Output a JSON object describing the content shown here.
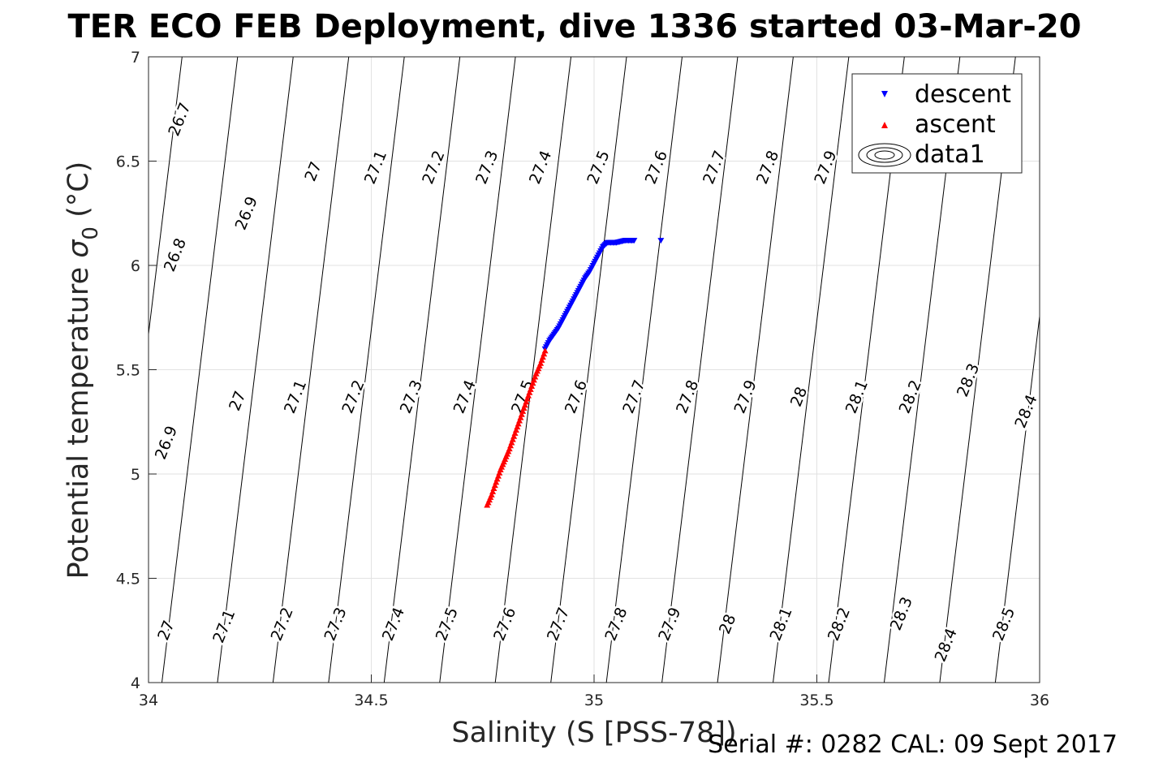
{
  "chart_data": {
    "type": "scatter",
    "title": "TER ECO FEB Deployment, dive 1336 started 03-Mar-20",
    "xlabel": "Salinity (S [PSS-78])",
    "ylabel_main": "Potential temperature ",
    "ylabel_sigma": "σ",
    "ylabel_sub": "0",
    "ylabel_unit": " (°C)",
    "xlim": [
      34,
      36
    ],
    "ylim": [
      4,
      7
    ],
    "grid": true,
    "x_ticks": [
      34,
      34.5,
      35,
      35.5,
      36
    ],
    "x_tick_labels": [
      "34",
      "34.5",
      "35",
      "35.5",
      "36"
    ],
    "y_ticks": [
      4,
      4.5,
      5,
      5.5,
      6,
      6.5,
      7
    ],
    "y_tick_labels": [
      "4",
      "4.5",
      "5",
      "5.5",
      "6",
      "6.5",
      "7"
    ],
    "legend_position": "top-right",
    "legend": [
      {
        "label": "descent",
        "marker": "triangle-down",
        "color": "#0000ff"
      },
      {
        "label": "ascent",
        "marker": "triangle-up",
        "color": "#ff0000"
      },
      {
        "label": "data1",
        "marker": "contour",
        "color": "#000000"
      }
    ],
    "series": [
      {
        "name": "descent",
        "color": "#0000ff",
        "marker": "triangle-down",
        "points": [
          [
            34.89,
            5.6
          ],
          [
            34.9,
            5.64
          ],
          [
            34.91,
            5.67
          ],
          [
            34.92,
            5.7
          ],
          [
            34.93,
            5.74
          ],
          [
            34.94,
            5.78
          ],
          [
            34.95,
            5.82
          ],
          [
            34.96,
            5.86
          ],
          [
            34.97,
            5.9
          ],
          [
            34.98,
            5.94
          ],
          [
            34.99,
            5.97
          ],
          [
            35.0,
            6.01
          ],
          [
            35.01,
            6.05
          ],
          [
            35.02,
            6.09
          ],
          [
            35.03,
            6.11
          ],
          [
            35.04,
            6.11
          ],
          [
            35.05,
            6.11
          ],
          [
            35.06,
            6.115
          ],
          [
            35.07,
            6.12
          ],
          [
            35.08,
            6.12
          ],
          [
            35.09,
            6.12
          ],
          [
            35.15,
            6.12
          ]
        ]
      },
      {
        "name": "ascent",
        "color": "#ff0000",
        "marker": "triangle-up",
        "points": [
          [
            34.76,
            4.85
          ],
          [
            34.77,
            4.9
          ],
          [
            34.78,
            4.96
          ],
          [
            34.79,
            5.02
          ],
          [
            34.8,
            5.07
          ],
          [
            34.81,
            5.12
          ],
          [
            34.82,
            5.18
          ],
          [
            34.83,
            5.24
          ],
          [
            34.84,
            5.3
          ],
          [
            34.85,
            5.36
          ],
          [
            34.86,
            5.42
          ],
          [
            34.87,
            5.48
          ],
          [
            34.88,
            5.53
          ],
          [
            34.89,
            5.59
          ]
        ]
      }
    ],
    "contour_labels": [
      {
        "text": "26.7",
        "x": 34.07,
        "y": 6.7
      },
      {
        "text": "26.8",
        "x": 34.06,
        "y": 6.05
      },
      {
        "text": "26.9",
        "x": 34.22,
        "y": 6.25
      },
      {
        "text": "26.9",
        "x": 34.04,
        "y": 5.15
      },
      {
        "text": "27",
        "x": 34.37,
        "y": 6.45
      },
      {
        "text": "27",
        "x": 34.2,
        "y": 5.35
      },
      {
        "text": "27",
        "x": 34.04,
        "y": 4.25
      },
      {
        "text": "27.1",
        "x": 34.51,
        "y": 6.47
      },
      {
        "text": "27.1",
        "x": 34.33,
        "y": 5.37
      },
      {
        "text": "27.1",
        "x": 34.17,
        "y": 4.27
      },
      {
        "text": "27.2",
        "x": 34.64,
        "y": 6.47
      },
      {
        "text": "27.2",
        "x": 34.46,
        "y": 5.37
      },
      {
        "text": "27.2",
        "x": 34.3,
        "y": 4.28
      },
      {
        "text": "27.3",
        "x": 34.76,
        "y": 6.47
      },
      {
        "text": "27.3",
        "x": 34.59,
        "y": 5.37
      },
      {
        "text": "27.3",
        "x": 34.42,
        "y": 4.28
      },
      {
        "text": "27.4",
        "x": 34.88,
        "y": 6.47
      },
      {
        "text": "27.4",
        "x": 34.71,
        "y": 5.37
      },
      {
        "text": "27.4",
        "x": 34.55,
        "y": 4.28
      },
      {
        "text": "27.5",
        "x": 35.01,
        "y": 6.47
      },
      {
        "text": "27.5",
        "x": 34.84,
        "y": 5.37
      },
      {
        "text": "27.5",
        "x": 34.67,
        "y": 4.28
      },
      {
        "text": "27.6",
        "x": 35.14,
        "y": 6.47
      },
      {
        "text": "27.6",
        "x": 34.96,
        "y": 5.37
      },
      {
        "text": "27.6",
        "x": 34.8,
        "y": 4.28
      },
      {
        "text": "27.7",
        "x": 35.27,
        "y": 6.47
      },
      {
        "text": "27.7",
        "x": 35.09,
        "y": 5.37
      },
      {
        "text": "27.7",
        "x": 34.92,
        "y": 4.28
      },
      {
        "text": "27.8",
        "x": 35.39,
        "y": 6.47
      },
      {
        "text": "27.8",
        "x": 35.21,
        "y": 5.37
      },
      {
        "text": "27.8",
        "x": 35.05,
        "y": 4.28
      },
      {
        "text": "27.9",
        "x": 35.52,
        "y": 6.47
      },
      {
        "text": "27.9",
        "x": 35.34,
        "y": 5.37
      },
      {
        "text": "27.9",
        "x": 35.17,
        "y": 4.28
      },
      {
        "text": "28",
        "x": 35.46,
        "y": 5.37
      },
      {
        "text": "28",
        "x": 35.3,
        "y": 4.28
      },
      {
        "text": "28.1",
        "x": 35.59,
        "y": 5.37
      },
      {
        "text": "28.1",
        "x": 35.42,
        "y": 4.28
      },
      {
        "text": "28.2",
        "x": 35.71,
        "y": 5.37
      },
      {
        "text": "28.2",
        "x": 35.55,
        "y": 4.28
      },
      {
        "text": "28.3",
        "x": 35.84,
        "y": 5.45
      },
      {
        "text": "28.3",
        "x": 35.69,
        "y": 4.33
      },
      {
        "text": "28.4",
        "x": 35.97,
        "y": 5.3
      },
      {
        "text": "28.4",
        "x": 35.79,
        "y": 4.18
      },
      {
        "text": "28.5",
        "x": 35.92,
        "y": 4.28
      }
    ],
    "footer": "Serial #: 0282  CAL: 09 Sept 2017"
  }
}
